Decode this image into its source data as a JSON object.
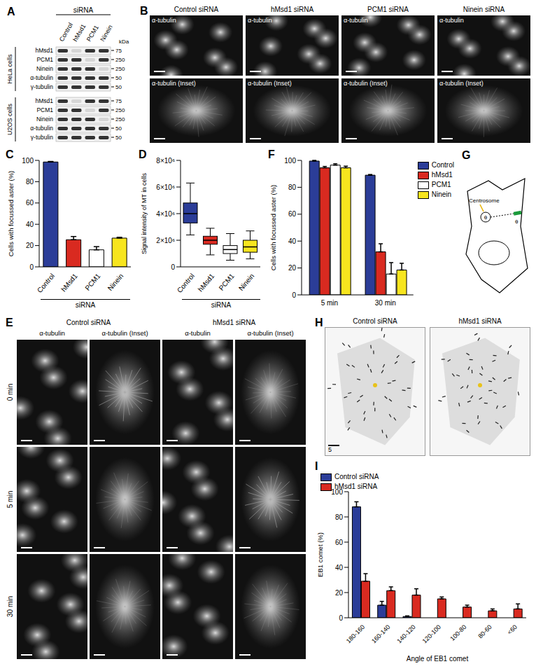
{
  "figure": {
    "A": {
      "panel": "A",
      "header": "siRNA",
      "lanes": [
        "Control",
        "hMsd1",
        "PCM1",
        "Ninein"
      ],
      "unit": "kDa",
      "blots": [
        {
          "cell_line": "HeLa cells",
          "rows": [
            {
              "protein": "hMsd1",
              "marker": 75
            },
            {
              "protein": "PCM1",
              "marker": 250
            },
            {
              "protein": "Ninein",
              "marker": 250
            },
            {
              "protein": "α-tubulin",
              "marker": 50
            },
            {
              "protein": "γ-tubulin",
              "marker": 50
            }
          ]
        },
        {
          "cell_line": "U2OS cells",
          "rows": [
            {
              "protein": "hMsd1",
              "marker": 75
            },
            {
              "protein": "PCM1",
              "marker": 250
            },
            {
              "protein": "Ninein",
              "marker": 250
            },
            {
              "protein": "α-tubulin",
              "marker": 50
            },
            {
              "protein": "γ-tubulin",
              "marker": 50
            }
          ]
        }
      ]
    },
    "B": {
      "panel": "B",
      "columns": [
        "Control siRNA",
        "hMsd1 siRNA",
        "PCM1 siRNA",
        "Ninein siRNA"
      ],
      "rows": [
        "α-tubulin",
        "α-tubulin (Inset)"
      ]
    },
    "E": {
      "panel": "E",
      "groups": [
        "Control siRNA",
        "hMsd1 siRNA"
      ],
      "columns": [
        "α-tubulin",
        "α-tubulin (Inset)"
      ],
      "rows": [
        "0 min",
        "5 min",
        "30 min"
      ]
    },
    "G": {
      "panel": "G",
      "label": "Centrosome",
      "angle": "θ"
    },
    "H": {
      "panel": "H",
      "columns": [
        "Control siRNA",
        "hMsd1 siRNA"
      ],
      "scale_bar": "5"
    }
  },
  "chart_data": [
    {
      "panel": "C",
      "type": "bar",
      "categories": [
        "Control",
        "hMsd1",
        "PCM1",
        "Ninein"
      ],
      "values": [
        98.5,
        25.5,
        16,
        27
      ],
      "errors": [
        0.5,
        3,
        3,
        0.8
      ],
      "colors": [
        "#2b3d98",
        "#d92a20",
        "#ffffff",
        "#f7e51e"
      ],
      "ylabel": "Cells with focussed aster (%)",
      "xlabel": "siRNA",
      "ylim": [
        0,
        100
      ],
      "yticks": [
        0,
        20,
        40,
        60,
        80,
        100
      ]
    },
    {
      "panel": "D",
      "type": "box",
      "categories": [
        "Control",
        "hMsd1",
        "PCM1",
        "Ninein"
      ],
      "min": [
        2400000,
        900000,
        500000,
        600000
      ],
      "q1": [
        3300000,
        1700000,
        1000000,
        1100000
      ],
      "median": [
        4000000,
        2000000,
        1300000,
        1500000
      ],
      "q3": [
        4800000,
        2300000,
        1600000,
        2000000
      ],
      "max": [
        6300000,
        2900000,
        2500000,
        2700000
      ],
      "colors": [
        "#2b3d98",
        "#d92a20",
        "#ffffff",
        "#f7e51e"
      ],
      "ylabel": "Signal intensity of MT in cells",
      "xlabel": "siRNA",
      "ylim": [
        0,
        8000000
      ],
      "yticks": [
        0,
        {
          "value": 2000000,
          "label": "2×10⁶"
        },
        {
          "value": 4000000,
          "label": "4×10⁶"
        },
        {
          "value": 6000000,
          "label": "6×10⁶"
        },
        {
          "value": 8000000,
          "label": "8×10⁶"
        }
      ]
    },
    {
      "panel": "F",
      "type": "bar",
      "categories": [
        "5 min",
        "30 min"
      ],
      "series": [
        {
          "name": "Control",
          "color": "#2b3d98",
          "values": [
            99.5,
            89
          ],
          "errors": [
            0.5,
            0.5
          ]
        },
        {
          "name": "hMsd1",
          "color": "#d92a20",
          "values": [
            94.5,
            32
          ],
          "errors": [
            1,
            6
          ]
        },
        {
          "name": "PCM1",
          "color": "#ffffff",
          "values": [
            96.5,
            15.5
          ],
          "errors": [
            1,
            8.5
          ]
        },
        {
          "name": "Ninein",
          "color": "#f7e51e",
          "values": [
            94.5,
            18.5
          ],
          "errors": [
            1.2,
            5
          ]
        }
      ],
      "ylabel": "Cells with focussed aster (%)",
      "ylim": [
        0,
        100
      ],
      "yticks": [
        0,
        20,
        40,
        60,
        80,
        100
      ],
      "legend": "right"
    },
    {
      "panel": "I",
      "type": "bar",
      "categories": [
        "180-160",
        "160-140",
        "140-120",
        "120-100",
        "100-80",
        "80-60",
        "<60"
      ],
      "series": [
        {
          "name": "Control siRNA",
          "color": "#2b3d98",
          "values": [
            88,
            10,
            1,
            0,
            0,
            0,
            0
          ],
          "errors": [
            4,
            3,
            0.5,
            0,
            0,
            0,
            0
          ]
        },
        {
          "name": "hMsd1 siRNA",
          "color": "#d92a20",
          "values": [
            29,
            21.5,
            18,
            15,
            8.5,
            5.5,
            7
          ],
          "errors": [
            6,
            3,
            5,
            1.5,
            1.5,
            1.5,
            4
          ]
        }
      ],
      "ylabel": "EB1 comet (%)",
      "xlabel": "Angle of EB1 comet",
      "ylim": [
        0,
        100
      ],
      "yticks": [
        0,
        20,
        40,
        60,
        80,
        100
      ],
      "legend": "upper right"
    }
  ]
}
